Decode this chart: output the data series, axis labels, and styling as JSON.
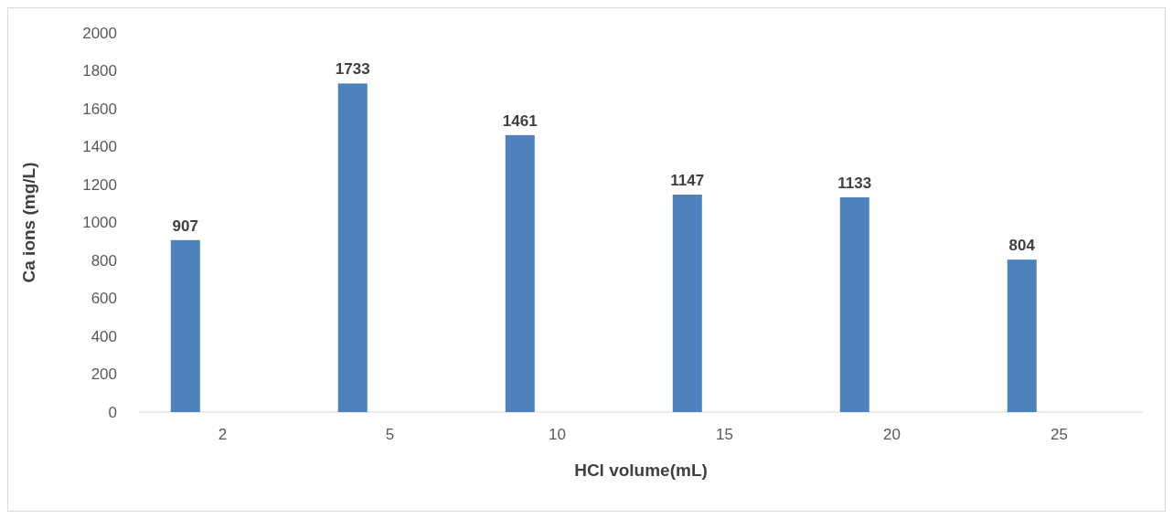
{
  "chart_data": {
    "type": "bar",
    "xlabel": "HCl volume(mL)",
    "ylabel": "Ca ions (mg/L)",
    "categories": [
      "2",
      "5",
      "10",
      "15",
      "20",
      "25"
    ],
    "values": [
      907,
      1733,
      1461,
      1147,
      1133,
      804
    ],
    "color": "#4f81bd",
    "ylim": [
      0,
      2000
    ],
    "yticks": [
      0,
      200,
      400,
      600,
      800,
      1000,
      1200,
      1400,
      1600,
      1800,
      2000
    ],
    "data_labels": true
  }
}
